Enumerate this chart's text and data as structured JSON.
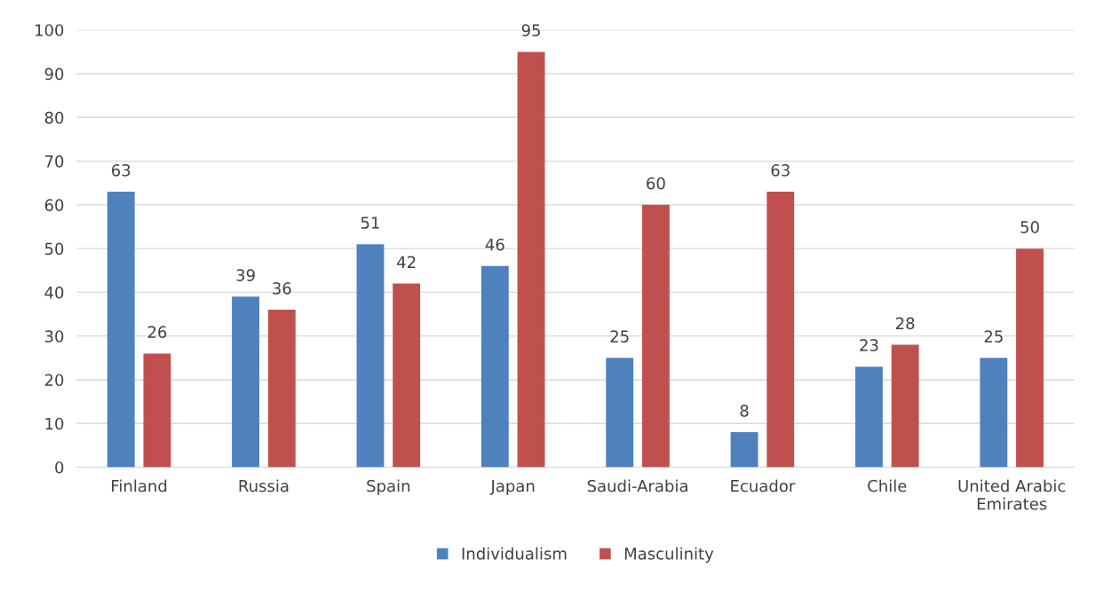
{
  "chart_data": {
    "type": "bar",
    "categories": [
      "Finland",
      "Russia",
      "Spain",
      "Japan",
      "Saudi-Arabia",
      "Ecuador",
      "Chile",
      "United Arabic\nEmirates"
    ],
    "series": [
      {
        "name": "Individualism",
        "color": "#4f81bd",
        "values": [
          63,
          39,
          51,
          46,
          25,
          8,
          23,
          25
        ]
      },
      {
        "name": "Masculinity",
        "color": "#c0504d",
        "values": [
          26,
          36,
          42,
          95,
          60,
          63,
          28,
          50
        ]
      }
    ],
    "ylim": [
      0,
      100
    ],
    "yticks": [
      0,
      10,
      20,
      30,
      40,
      50,
      60,
      70,
      80,
      90,
      100
    ],
    "grid": "y",
    "legend": "bottom",
    "data_labels": true
  }
}
